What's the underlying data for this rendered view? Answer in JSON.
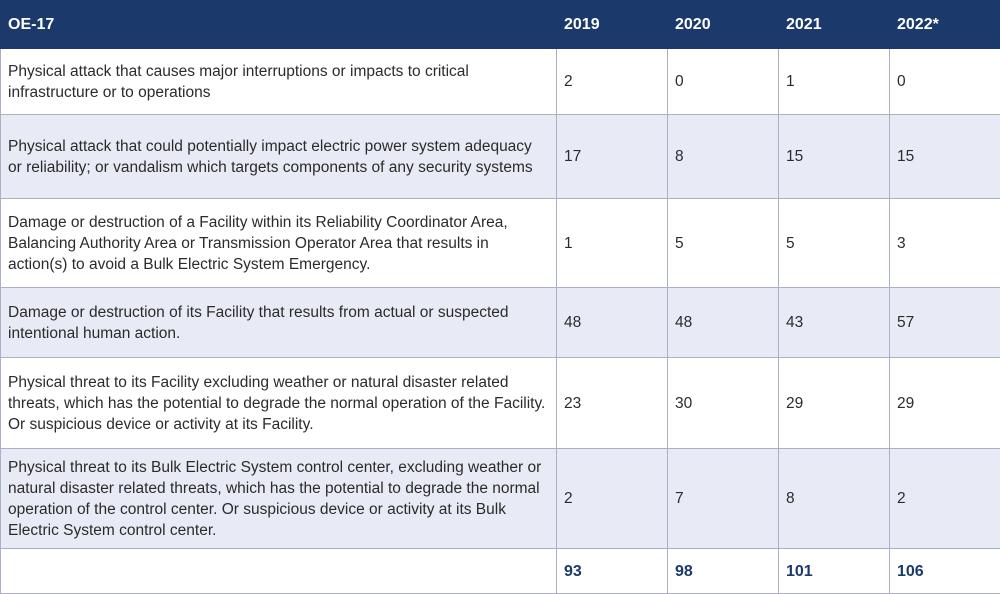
{
  "table": {
    "headers": [
      "OE-17",
      "2019",
      "2020",
      "2021",
      "2022*"
    ],
    "rows": [
      {
        "label": "Physical attack that causes major interruptions or impacts to critical infrastructure or to operations",
        "values": [
          "2",
          "0",
          "1",
          "0"
        ]
      },
      {
        "label": "Physical attack that could potentially impact electric power system adequacy or reliability; or vandalism which targets components of any security systems",
        "values": [
          "17",
          "8",
          "15",
          "15"
        ]
      },
      {
        "label": "Damage or destruction of a Facility within its Reliability Coordinator Area, Balancing Authority Area or Transmission Operator Area that results in action(s) to avoid a Bulk Electric System Emergency.",
        "values": [
          "1",
          "5",
          "5",
          "3"
        ]
      },
      {
        "label": "Damage or destruction of its Facility that results from actual or suspected intentional human action.",
        "values": [
          "48",
          "48",
          "43",
          "57"
        ]
      },
      {
        "label": "Physical threat to its Facility excluding weather or natural disaster related threats, which has the potential to degrade the normal operation of the Facility. Or suspicious device or activity at its Facility.",
        "values": [
          "23",
          "30",
          "29",
          "29"
        ]
      },
      {
        "label": "Physical threat to its Bulk Electric System control center, excluding weather or natural disaster related threats, which has the potential to degrade the normal operation of the control center. Or suspicious device or activity at its Bulk Electric System control center.",
        "values": [
          "2",
          "7",
          "8",
          "2"
        ]
      }
    ],
    "totals": [
      "93",
      "98",
      "101",
      "106"
    ]
  },
  "colors": {
    "header_bg": "#1b3a6b",
    "alt_row_bg": "#e8ebf5",
    "border": "#a9b1c7"
  }
}
